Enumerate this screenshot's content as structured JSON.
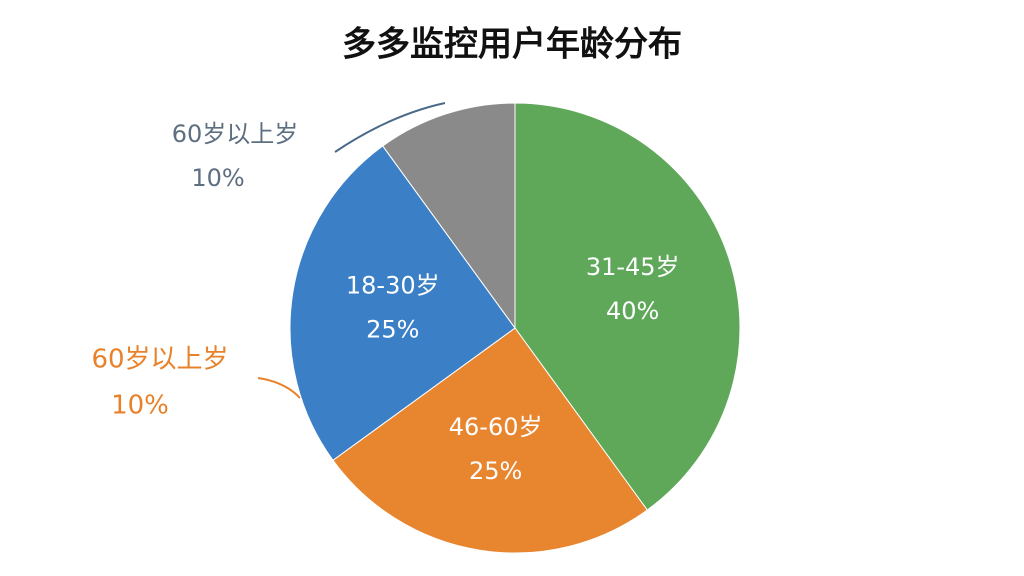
{
  "chart_data": {
    "type": "pie",
    "title": "多多监控用户年龄分布",
    "categories": [
      "31-45岁",
      "46-60岁",
      "18-30岁",
      "60岁以上岁"
    ],
    "values": [
      40,
      25,
      25,
      10
    ],
    "value_labels": [
      "40%",
      "25%",
      "25%",
      "10%"
    ],
    "colors": [
      "#5fa85a",
      "#e8852f",
      "#3b80c6",
      "#8a8a8a"
    ],
    "annotations": [
      {
        "text": "60岁以上岁",
        "value_label": "10%",
        "color": "#e8822a"
      }
    ]
  }
}
